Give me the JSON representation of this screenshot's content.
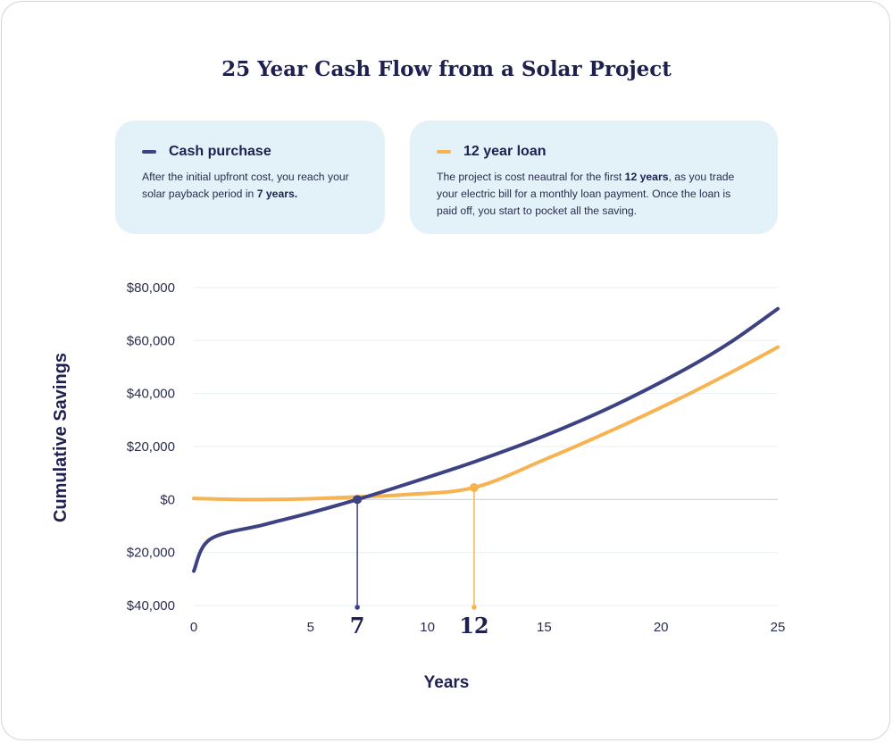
{
  "title": "25 Year Cash Flow from a Solar Project",
  "legend": {
    "cash": {
      "label": "Cash purchase",
      "text_before": "After the initial upfront cost, you reach your solar payback period in ",
      "text_bold": "7 years.",
      "text_after": ""
    },
    "loan": {
      "label": "12 year loan",
      "text_before": "The project is cost neautral for the first ",
      "text_bold": "12 years",
      "text_after": ", as you trade your electric bill for a monthly loan payment. Once the loan is paid off, you start to pocket all the saving."
    }
  },
  "chart_data": {
    "type": "line",
    "title": "25 Year Cash Flow from a Solar Project",
    "xlabel": "Years",
    "ylabel": "Cumulative Savings",
    "xlim": [
      0,
      25
    ],
    "ylim": [
      -40000,
      80000
    ],
    "grid": true,
    "x_ticks": [
      {
        "value": 0,
        "label": "0",
        "emphasis": false
      },
      {
        "value": 5,
        "label": "5",
        "emphasis": false
      },
      {
        "value": 7,
        "label": "7",
        "emphasis": true
      },
      {
        "value": 10,
        "label": "10",
        "emphasis": false
      },
      {
        "value": 12,
        "label": "12",
        "emphasis": true
      },
      {
        "value": 15,
        "label": "15",
        "emphasis": false
      },
      {
        "value": 20,
        "label": "20",
        "emphasis": false
      },
      {
        "value": 25,
        "label": "25",
        "emphasis": false
      }
    ],
    "y_ticks": [
      {
        "value": 80000,
        "label": "$80,000"
      },
      {
        "value": 60000,
        "label": "$60,000"
      },
      {
        "value": 40000,
        "label": "$40,000"
      },
      {
        "value": 20000,
        "label": "$20,000"
      },
      {
        "value": 0,
        "label": "$0"
      },
      {
        "value": -20000,
        "label": "$20,000"
      },
      {
        "value": -40000,
        "label": "$40,000"
      }
    ],
    "series": [
      {
        "name": "Cash purchase",
        "color": "#3d4282",
        "x": [
          0,
          0.7,
          3,
          5,
          7,
          9,
          12,
          15,
          18,
          21,
          23,
          25
        ],
        "y": [
          -27000,
          -15000,
          -9500,
          -5000,
          0,
          5500,
          14200,
          24000,
          35500,
          49000,
          59500,
          72000
        ]
      },
      {
        "name": "12 year loan",
        "color": "#f7b352",
        "x": [
          0,
          2,
          3,
          5,
          7,
          9,
          12,
          15,
          18,
          21,
          23,
          25
        ],
        "y": [
          400,
          0,
          0,
          300,
          1000,
          1800,
          4500,
          15000,
          26500,
          39000,
          48000,
          57500
        ]
      }
    ],
    "markers": [
      {
        "series": "Cash purchase",
        "x": 7,
        "y": 0
      },
      {
        "series": "12 year loan",
        "x": 12,
        "y": 4500
      }
    ]
  }
}
